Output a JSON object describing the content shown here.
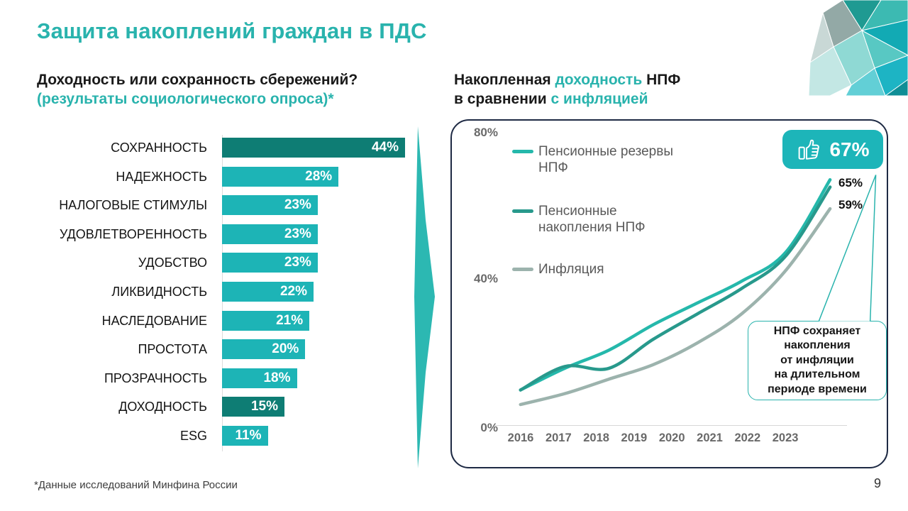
{
  "colors": {
    "accent": "#29b3ad",
    "panel_border": "#1e2a44",
    "badge_bg": "#1db5b9",
    "bar": "#1db4b6",
    "bar_highlight": "#0e7d74"
  },
  "slide": {
    "title": "Защита накоплений граждан в ПДС",
    "footnote": "*Данные исследований Минфина России",
    "page_number": "9"
  },
  "left_section": {
    "heading": "Доходность или сохранность сбережений?",
    "subheading": "(результаты социологического опроса)*"
  },
  "right_section": {
    "heading": {
      "line1": [
        {
          "t": "Накопленная ",
          "accent": false
        },
        {
          "t": "доходность",
          "accent": true
        },
        {
          "t": " НПФ",
          "accent": false
        }
      ],
      "line2": [
        {
          "t": "в сравнении ",
          "accent": false
        },
        {
          "t": "с инфляцией",
          "accent": true
        }
      ]
    }
  },
  "chart_data": [
    {
      "type": "bar",
      "orientation": "horizontal",
      "title": "Доходность или сохранность сбережений? (результаты социологического опроса)*",
      "categories": [
        "СОХРАННОСТЬ",
        "НАДЕЖНОСТЬ",
        "НАЛОГОВЫЕ СТИМУЛЫ",
        "УДОВЛЕТВОРЕННОСТЬ",
        "УДОБСТВО",
        "ЛИКВИДНОСТЬ",
        "НАСЛЕДОВАНИЕ",
        "ПРОСТОТА",
        "ПРОЗРАЧНОСТЬ",
        "ДОХОДНОСТЬ",
        "ESG"
      ],
      "values": [
        44,
        28,
        23,
        23,
        23,
        22,
        21,
        20,
        18,
        15,
        11
      ],
      "unit": "%",
      "highlighted_indexes": [
        0,
        9
      ],
      "xlim": [
        0,
        44
      ],
      "grid": false,
      "value_labels": "inside-end"
    },
    {
      "type": "line",
      "title": "Накопленная доходность НПФ в сравнении с инфляцией",
      "x": [
        "2016",
        "2017",
        "2018",
        "2019",
        "2020",
        "2021",
        "2022",
        "2023"
      ],
      "ylabel": "",
      "ylim": [
        0,
        80
      ],
      "y_ticks": [
        {
          "label": "80%",
          "value": 80
        },
        {
          "label": "40%",
          "value": 40
        },
        {
          "label": "0%",
          "value": 0
        }
      ],
      "grid": false,
      "legend_position": "upper-left",
      "series": [
        {
          "name": "Пенсионные резервы НПФ",
          "color": "#25b8ab",
          "values": [
            9,
            15,
            20,
            27,
            33,
            39,
            47,
            67
          ],
          "final_label": "67%"
        },
        {
          "name": "Пенсионные накопления НПФ",
          "color": "#28998c",
          "values": [
            9,
            15.5,
            15,
            23,
            30,
            37,
            46,
            65
          ],
          "final_label": "65%"
        },
        {
          "name": "Инфляция",
          "color": "#9cb3ad",
          "values": [
            5,
            8,
            12,
            16,
            22,
            30,
            42,
            59
          ],
          "final_label": "59%"
        }
      ],
      "annotations": {
        "badge": {
          "icon": "thumbs-up",
          "value": "67%"
        },
        "end_labels": [
          "65%",
          "59%"
        ],
        "callout_lines": [
          "НПФ сохраняет",
          "накопления",
          "от инфляции",
          "на длительном",
          "периоде времени"
        ]
      }
    }
  ]
}
